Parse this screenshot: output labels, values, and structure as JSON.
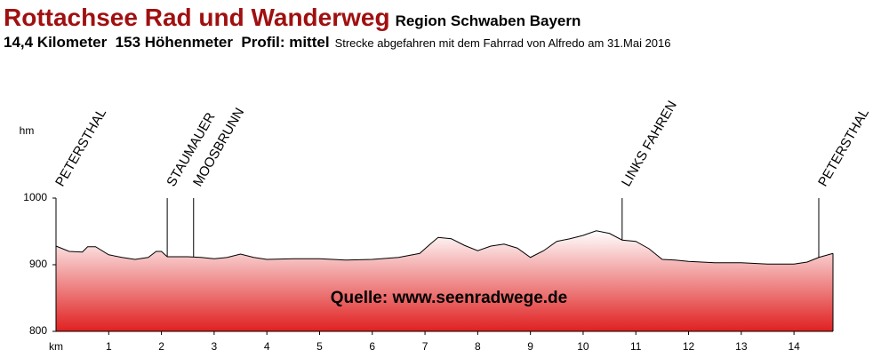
{
  "header": {
    "title": "Rottachsee Rad und Wanderweg",
    "subtitle": "Region Schwaben Bayern",
    "stats": "14,4 Kilometer  153 Höhenmeter  Profil: mittel",
    "note": "Strecke abgefahren mit dem Fahrrad von Alfredo am 31.Mai 2016"
  },
  "chart_data": {
    "type": "area",
    "xlabel": "km",
    "ylabel": "hm",
    "source": "Quelle: www.seenradwege.de",
    "x": [
      0,
      0.25,
      0.5,
      0.6,
      0.75,
      1.0,
      1.25,
      1.5,
      1.75,
      1.9,
      2.0,
      2.11,
      2.25,
      2.5,
      2.75,
      3.0,
      3.25,
      3.5,
      3.75,
      4.0,
      4.5,
      5.0,
      5.5,
      6.0,
      6.5,
      6.9,
      7.1,
      7.25,
      7.5,
      7.75,
      8.0,
      8.25,
      8.5,
      8.75,
      9.0,
      9.25,
      9.5,
      9.75,
      10.0,
      10.25,
      10.5,
      10.74,
      11.0,
      11.25,
      11.5,
      11.75,
      12.0,
      12.5,
      13.0,
      13.5,
      14.0,
      14.25,
      14.47,
      14.74
    ],
    "values": [
      928,
      920,
      919,
      927,
      927,
      915,
      911,
      908,
      911,
      920,
      920,
      912,
      912,
      912,
      911,
      909,
      911,
      916,
      911,
      908,
      909,
      909,
      907,
      908,
      911,
      917,
      931,
      941,
      939,
      929,
      921,
      928,
      931,
      925,
      911,
      921,
      935,
      939,
      944,
      951,
      947,
      937,
      935,
      924,
      908,
      907,
      905,
      903,
      903,
      901,
      901,
      904,
      911,
      917
    ],
    "color": "#e02020",
    "xlim": [
      0,
      14.74
    ],
    "ylim": [
      800,
      1100
    ],
    "xticks": [
      1,
      2,
      3,
      4,
      5,
      6,
      7,
      8,
      9,
      10,
      11,
      12,
      13,
      14
    ],
    "yticks": [
      800,
      900,
      1000
    ],
    "markers": [
      {
        "label": "PETERSTHAL",
        "x": 0
      },
      {
        "label": "STAUMAUER",
        "x": 2.11
      },
      {
        "label": "MOOSBRUNN",
        "x": 2.61
      },
      {
        "label": "LINKS FAHREN",
        "x": 10.74
      },
      {
        "label": "PETERSTHAL",
        "x": 14.47
      }
    ]
  }
}
